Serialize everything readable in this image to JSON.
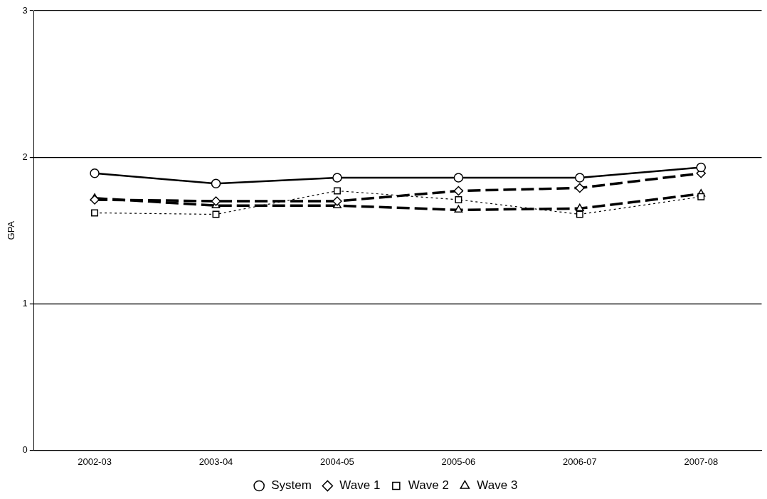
{
  "chart_data": {
    "type": "line",
    "ylabel": "GPA",
    "categories": [
      "2002-03",
      "2003-04",
      "2004-05",
      "2005-06",
      "2006-07",
      "2007-08"
    ],
    "series": [
      {
        "name": "System",
        "color": "#000000",
        "marker": "circle",
        "line_style": "solid",
        "values": [
          1.89,
          1.82,
          1.86,
          1.86,
          1.86,
          1.93
        ]
      },
      {
        "name": "Wave 1",
        "color": "#000000",
        "marker": "diamond",
        "line_style": "dashed",
        "values": [
          1.71,
          1.7,
          1.7,
          1.77,
          1.79,
          1.89
        ]
      },
      {
        "name": "Wave 2",
        "color": "#000000",
        "marker": "square",
        "line_style": "dotted",
        "values": [
          1.62,
          1.61,
          1.77,
          1.71,
          1.61,
          1.73
        ]
      },
      {
        "name": "Wave 3",
        "color": "#000000",
        "marker": "triangle",
        "line_style": "dashed",
        "values": [
          1.72,
          1.67,
          1.67,
          1.64,
          1.65,
          1.75
        ]
      }
    ],
    "ylim": [
      0,
      3
    ],
    "yticks": [
      0,
      1,
      2,
      3
    ],
    "grid": "y",
    "legend": "bottom"
  }
}
